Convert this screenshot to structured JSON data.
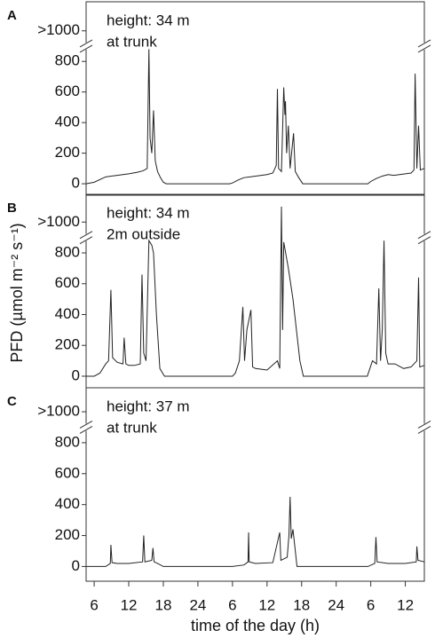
{
  "chart_data": [
    {
      "type": "line",
      "panel": "A",
      "annotation": [
        "height: 34 m",
        "at trunk"
      ],
      "color": "#222222",
      "x": [
        4.6,
        6,
        8,
        10,
        12,
        13.5,
        14.5,
        15.2,
        15.5,
        15.7,
        16,
        16.3,
        16.6,
        17,
        17.5,
        18,
        18.5,
        29.5,
        30,
        31,
        32,
        33,
        34,
        35,
        36,
        37,
        37.6,
        37.8,
        38,
        38.5,
        38.9,
        39.1,
        39.2,
        39.4,
        39.7,
        40,
        40.6,
        40.9,
        41.5,
        42.2,
        53.5,
        54,
        55,
        56,
        57,
        58,
        59,
        60,
        61,
        61.5,
        61.7,
        62,
        62.3,
        62.6,
        63.3
      ],
      "values": [
        0,
        10,
        45,
        55,
        65,
        75,
        85,
        100,
        880,
        300,
        200,
        480,
        150,
        80,
        40,
        10,
        0,
        0,
        5,
        25,
        40,
        45,
        50,
        55,
        60,
        70,
        120,
        620,
        100,
        80,
        630,
        450,
        540,
        200,
        380,
        100,
        330,
        80,
        40,
        0,
        0,
        15,
        35,
        50,
        60,
        55,
        60,
        65,
        70,
        90,
        720,
        100,
        380,
        90,
        100
      ],
      "xlim": [
        4.6,
        63.3
      ],
      "ylim": [
        -75,
        1190
      ],
      "yticks": [
        0,
        200,
        400,
        600,
        800,
        {
          "value": 1000,
          "label": ">1000"
        }
      ]
    },
    {
      "type": "line",
      "panel": "B",
      "annotation": [
        "height: 34 m",
        "2m outside"
      ],
      "ylabel": "PFD (µmol m⁻² s⁻¹)",
      "color": "#222222",
      "x": [
        4.6,
        6,
        7,
        8,
        8.5,
        8.9,
        9.2,
        10,
        11,
        11.2,
        11.5,
        12,
        13,
        14,
        14.3,
        14.6,
        15,
        15.5,
        16,
        16.3,
        16.8,
        17.4,
        18.2,
        30,
        30.5,
        31.2,
        31.8,
        32.1,
        32.5,
        33.2,
        33.5,
        34,
        36,
        37.8,
        38.2,
        38.5,
        38.7,
        38.9,
        39.7,
        40.5,
        41.1,
        41.7,
        42.3,
        53.4,
        54.3,
        55,
        55.4,
        55.7,
        56,
        56.3,
        56.6,
        57,
        58.2,
        59.7,
        61,
        62,
        62.3,
        62.5,
        63.3
      ],
      "values": [
        0,
        0,
        20,
        80,
        100,
        560,
        120,
        90,
        80,
        250,
        80,
        70,
        70,
        80,
        660,
        150,
        100,
        880,
        850,
        800,
        400,
        50,
        0,
        0,
        20,
        100,
        450,
        100,
        300,
        430,
        60,
        50,
        40,
        100,
        50,
        1100,
        300,
        870,
        700,
        500,
        300,
        100,
        0,
        0,
        100,
        80,
        570,
        100,
        300,
        880,
        150,
        80,
        80,
        50,
        60,
        100,
        640,
        60,
        70
      ],
      "xlim": [
        4.6,
        63.3
      ],
      "ylim": [
        -75,
        1180
      ],
      "yticks": [
        0,
        200,
        400,
        600,
        800,
        {
          "value": 1000,
          "label": ">1000"
        }
      ]
    },
    {
      "type": "line",
      "panel": "C",
      "annotation": [
        "height: 37 m",
        "at trunk"
      ],
      "xlabel": "time of the day (h)",
      "color": "#222222",
      "x": [
        4.6,
        8,
        8.8,
        8.9,
        9.1,
        10,
        12,
        14.4,
        14.6,
        14.8,
        16,
        16.2,
        16.4,
        17,
        18,
        30,
        32,
        32.7,
        32.8,
        32.9,
        34,
        37,
        38.2,
        38.4,
        39.5,
        39.8,
        40,
        40.2,
        40.5,
        41.2,
        53.5,
        54.7,
        54.9,
        55.1,
        57,
        60,
        61.9,
        62,
        62.2,
        63.3
      ],
      "values": [
        0,
        0,
        20,
        140,
        25,
        20,
        20,
        30,
        200,
        30,
        40,
        120,
        30,
        20,
        0,
        0,
        10,
        30,
        220,
        30,
        20,
        25,
        220,
        40,
        60,
        200,
        450,
        180,
        240,
        0,
        0,
        20,
        190,
        30,
        20,
        20,
        30,
        130,
        40,
        30
      ],
      "xlim": [
        4.6,
        63.3
      ],
      "ylim": [
        -95,
        1155
      ],
      "yticks": [
        0,
        200,
        400,
        600,
        800,
        {
          "value": 1000,
          "label": ">1000"
        }
      ],
      "xticks": [
        6,
        12,
        18,
        24,
        {
          "value": 30,
          "label": "6"
        },
        {
          "value": 36,
          "label": "12"
        },
        {
          "value": 42,
          "label": "18"
        },
        {
          "value": 48,
          "label": "24"
        },
        {
          "value": 54,
          "label": "6"
        },
        {
          "value": 60,
          "label": "12"
        }
      ]
    }
  ]
}
